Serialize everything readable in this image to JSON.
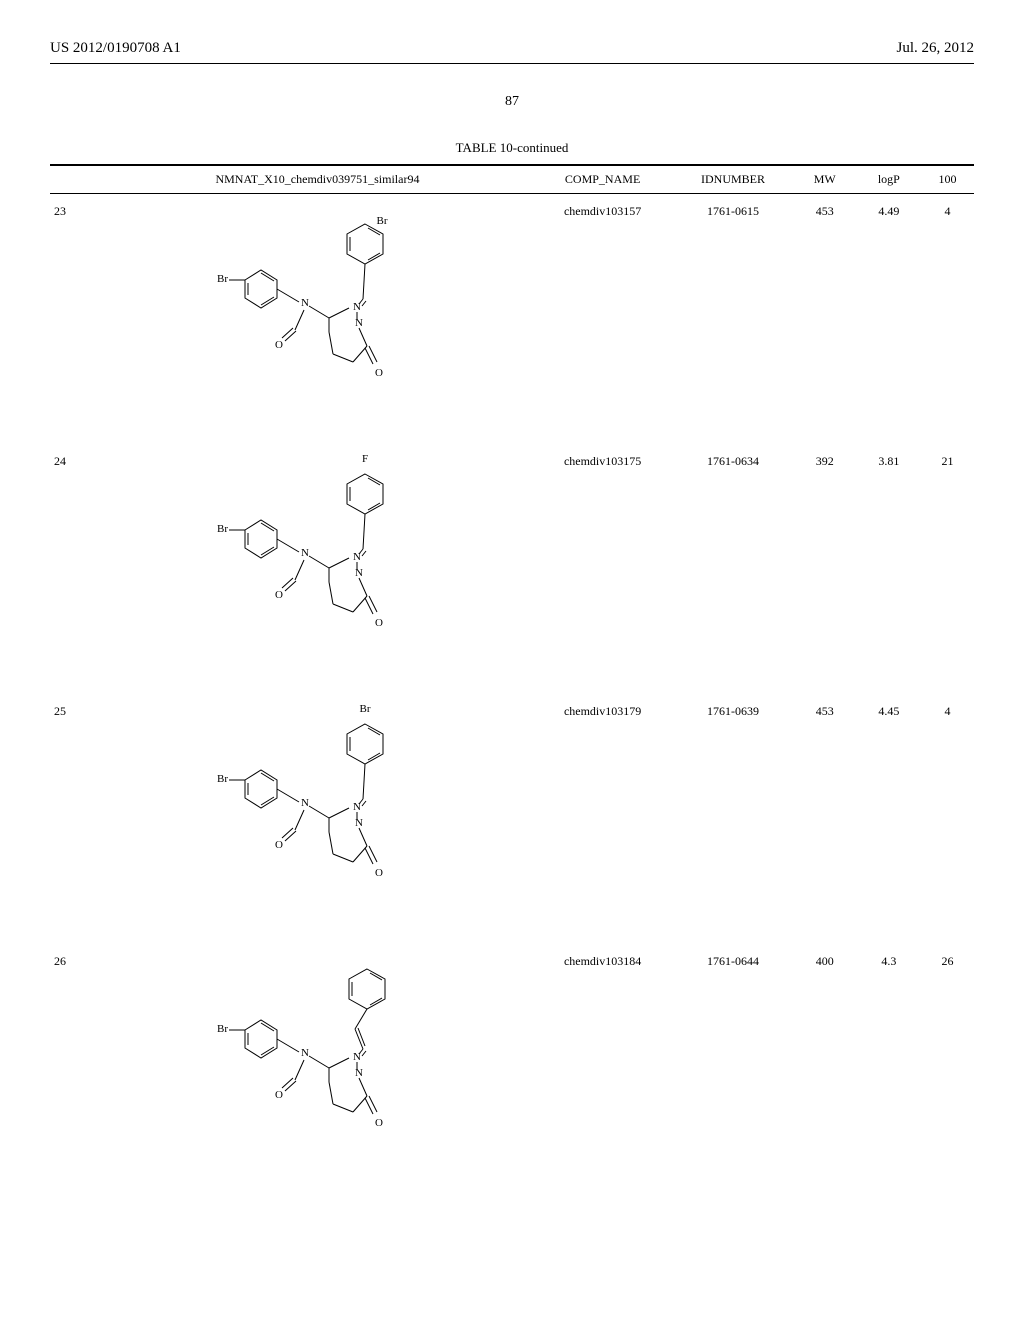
{
  "header": {
    "pub_number": "US 2012/0190708 A1",
    "pub_date": "Jul. 26, 2012"
  },
  "page_number": "87",
  "table": {
    "title": "TABLE 10-continued",
    "columns": {
      "structure": "NMNAT_X10_chemdiv039751_similar94",
      "comp_name": "COMP_NAME",
      "idnumber": "IDNUMBER",
      "mw": "MW",
      "logp": "logP",
      "c100": "100"
    },
    "rows": [
      {
        "idx": "23",
        "comp_name": "chemdiv103157",
        "idnumber": "1761-0615",
        "mw": "453",
        "logp": "4.49",
        "c100": "4",
        "structure": {
          "left_sub": "Br",
          "top_sub": "Br",
          "top_pos": "meta"
        }
      },
      {
        "idx": "24",
        "comp_name": "chemdiv103175",
        "idnumber": "1761-0634",
        "mw": "392",
        "logp": "3.81",
        "c100": "21",
        "structure": {
          "left_sub": "Br",
          "top_sub": "F",
          "top_pos": "para"
        }
      },
      {
        "idx": "25",
        "comp_name": "chemdiv103179",
        "idnumber": "1761-0639",
        "mw": "453",
        "logp": "4.45",
        "c100": "4",
        "structure": {
          "left_sub": "Br",
          "top_sub": "Br",
          "top_pos": "para"
        }
      },
      {
        "idx": "26",
        "comp_name": "chemdiv103184",
        "idnumber": "1761-0644",
        "mw": "400",
        "logp": "4.3",
        "c100": "26",
        "structure": {
          "left_sub": "Br",
          "top_sub": "",
          "top_pos": "vinyl"
        }
      }
    ]
  },
  "styling": {
    "background_color": "#ffffff",
    "text_color": "#000000",
    "rule_color": "#000000",
    "body_fontsize_pt": 12,
    "header_fontsize_pt": 15
  }
}
